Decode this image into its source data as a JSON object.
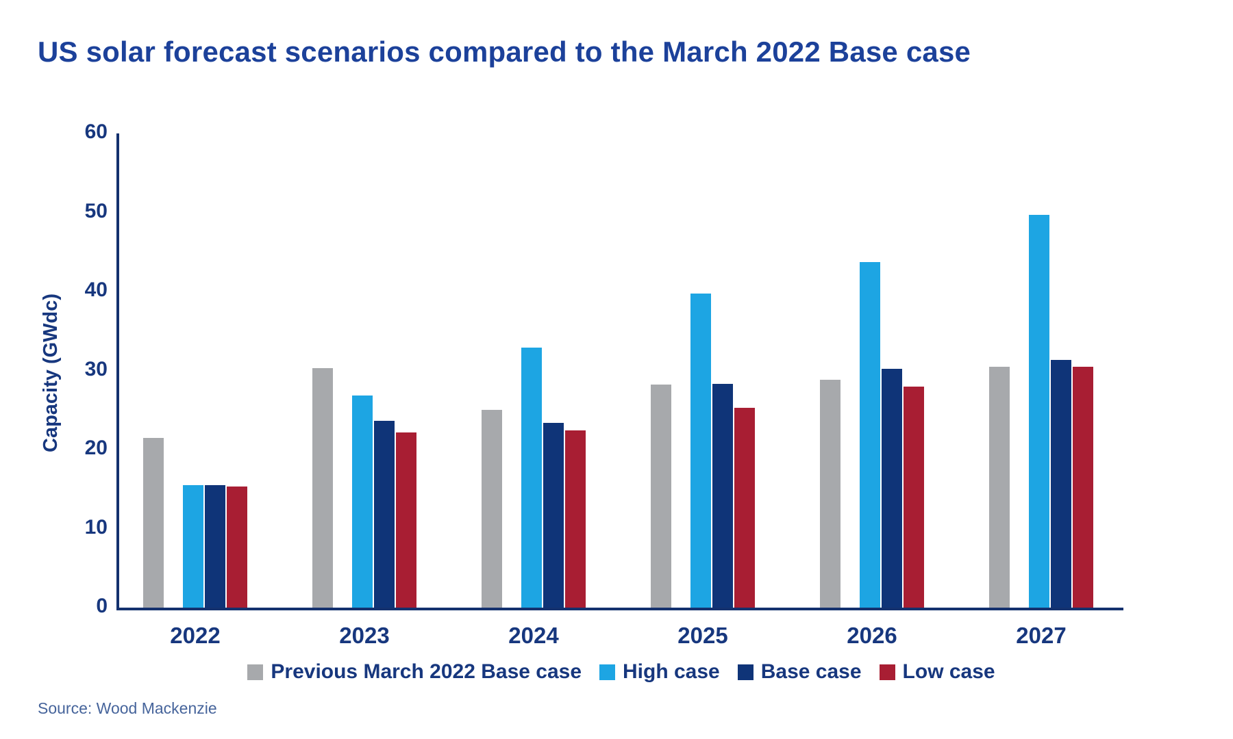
{
  "chart_data": {
    "type": "bar",
    "title": "US solar forecast scenarios compared to the March 2022 Base case",
    "ylabel": "Capacity (GWdc)",
    "xlabel": "",
    "source": "Source: Wood Mackenzie",
    "categories": [
      "2022",
      "2023",
      "2024",
      "2025",
      "2026",
      "2027"
    ],
    "series": [
      {
        "name": "Previous March 2022 Base case",
        "color": "#a7a9ac",
        "values": [
          21.5,
          30.3,
          25.0,
          28.2,
          28.8,
          30.5
        ]
      },
      {
        "name": "High case",
        "color": "#1da5e3",
        "values": [
          15.5,
          26.8,
          32.9,
          39.7,
          43.7,
          49.7
        ]
      },
      {
        "name": "Base case",
        "color": "#0f3478",
        "values": [
          15.5,
          23.6,
          23.4,
          28.3,
          30.2,
          31.3
        ]
      },
      {
        "name": "Low case",
        "color": "#a81e33",
        "values": [
          15.3,
          22.2,
          22.4,
          25.3,
          28.0,
          30.5
        ]
      }
    ],
    "ylim": [
      0,
      60
    ],
    "ytick_step": 10,
    "yticks": [
      0,
      10,
      20,
      30,
      40,
      50,
      60
    ],
    "grid": false,
    "legend_position": "bottom",
    "colors": {
      "title_text": "#1c419a",
      "axis_text": "#17377e",
      "axis_line": "#14316e",
      "source_text": "#46649b",
      "background": "#ffffff"
    }
  }
}
